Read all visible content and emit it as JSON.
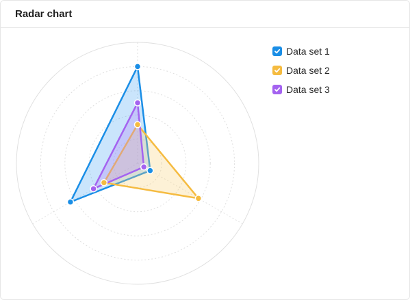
{
  "card": {
    "title": "Radar chart"
  },
  "chart_data": {
    "type": "radar",
    "axes": 3,
    "max": 5,
    "rings": 5,
    "grid": true,
    "legend_position": "top-right",
    "series": [
      {
        "name": "Data set 1",
        "color": "#1a8ee6",
        "fill": "rgba(80,170,245,0.30)",
        "values": [
          4.0,
          0.6,
          3.2
        ],
        "checked": true
      },
      {
        "name": "Data set 2",
        "color": "#f5bb40",
        "fill": "rgba(250,210,120,0.30)",
        "values": [
          1.6,
          2.9,
          1.6
        ],
        "checked": true
      },
      {
        "name": "Data set 3",
        "color": "#a463f0",
        "fill": "rgba(180,130,245,0.30)",
        "values": [
          2.5,
          0.3,
          2.1
        ],
        "checked": true
      }
    ]
  },
  "icons": {
    "legend_check": "check-icon"
  }
}
